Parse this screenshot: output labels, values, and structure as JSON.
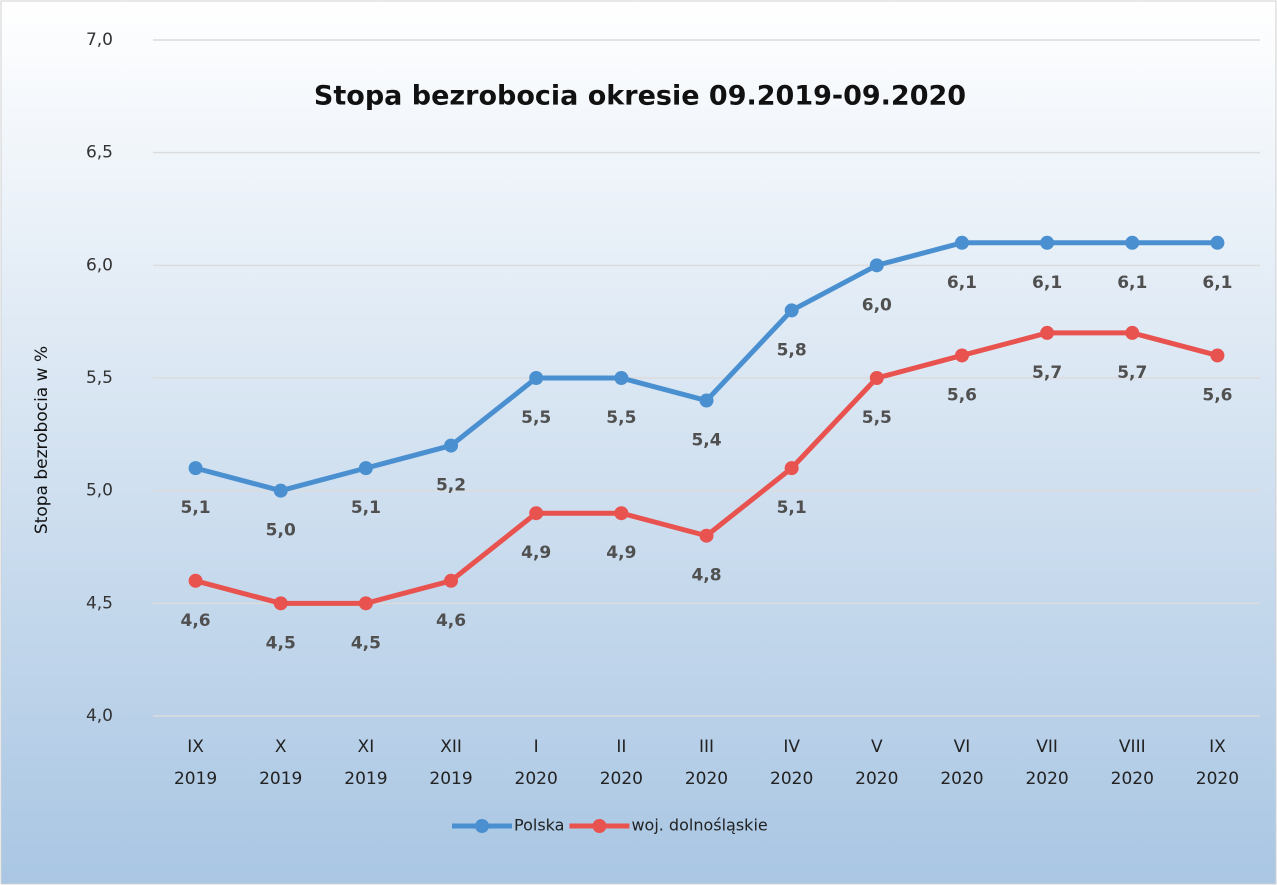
{
  "chart_data": {
    "type": "line",
    "title": "Stopa bezrobocia  okresie 09.2019-09.2020",
    "y_label": "Stopa bezrobocia w %",
    "categories": [
      [
        "IX",
        "2019"
      ],
      [
        "X",
        "2019"
      ],
      [
        "XI",
        "2019"
      ],
      [
        "XII",
        "2019"
      ],
      [
        "I",
        "2020"
      ],
      [
        "II",
        "2020"
      ],
      [
        "III",
        "2020"
      ],
      [
        "IV",
        "2020"
      ],
      [
        "V",
        "2020"
      ],
      [
        "VI",
        "2020"
      ],
      [
        "VII",
        "2020"
      ],
      [
        "VIII",
        "2020"
      ],
      [
        "IX",
        "2020"
      ]
    ],
    "series": [
      {
        "name": "Polska",
        "color": "#4a90d0",
        "values": [
          5.1,
          5.0,
          5.1,
          5.2,
          5.5,
          5.5,
          5.4,
          5.8,
          6.0,
          6.1,
          6.1,
          6.1,
          6.1
        ],
        "value_labels": [
          "5,1",
          "5,0",
          "5,1",
          "5,2",
          "5,5",
          "5,5",
          "5,4",
          "5,8",
          "6,0",
          "6,1",
          "6,1",
          "6,1",
          "6,1"
        ]
      },
      {
        "name": "woj. dolnośląskie",
        "color": "#e8534f",
        "values": [
          4.6,
          4.5,
          4.5,
          4.6,
          4.9,
          4.9,
          4.8,
          5.1,
          5.5,
          5.6,
          5.7,
          5.7,
          5.6
        ],
        "value_labels": [
          "4,6",
          "4,5",
          "4,5",
          "4,6",
          "4,9",
          "4,9",
          "4,8",
          "5,1",
          "5,5",
          "5,6",
          "5,7",
          "5,7",
          "5,6"
        ]
      }
    ],
    "ylim": [
      4.0,
      7.0
    ],
    "yticks": [
      {
        "value": 4.0,
        "label": "4,0"
      },
      {
        "value": 4.5,
        "label": "4,5"
      },
      {
        "value": 5.0,
        "label": "5,0"
      },
      {
        "value": 5.5,
        "label": "5,5"
      },
      {
        "value": 6.0,
        "label": "6,0"
      },
      {
        "value": 6.5,
        "label": "6,5"
      },
      {
        "value": 7.0,
        "label": "7,0"
      }
    ],
    "grid": true,
    "legend": "bottom"
  }
}
